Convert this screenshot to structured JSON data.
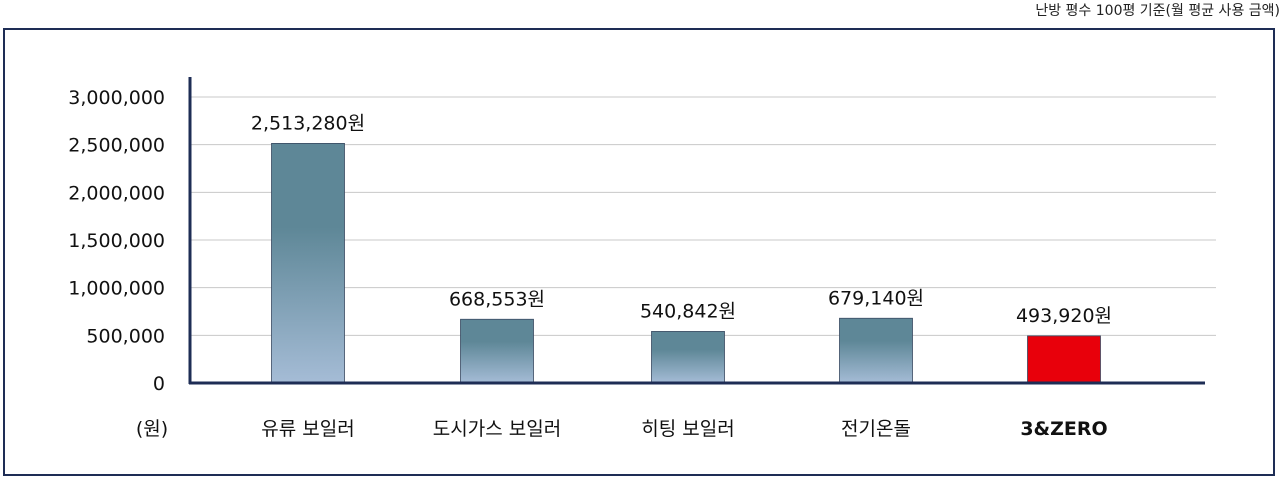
{
  "subtitle": "난방 평수 100평 기준(월 평균 사용 금액)",
  "chart_data": {
    "type": "bar",
    "categories": [
      "유류 보일러",
      "도시가스 보일러",
      "히팅 보일러",
      "전기온돌",
      "3&ZERO"
    ],
    "values": [
      2513280,
      668553,
      540842,
      679140,
      493920
    ],
    "data_labels": [
      "2,513,280원",
      "668,553원",
      "540,842원",
      "679,140원",
      "493,920원"
    ],
    "unit_label": "(원)",
    "y_ticks": [
      "0",
      "500,000",
      "1,000,000",
      "1,500,000",
      "2,000,000",
      "2,500,000",
      "3,000,000"
    ],
    "ylim": [
      0,
      3000000
    ],
    "grid": true,
    "highlight_index": 4,
    "colors": {
      "bar_top": "#5e8797",
      "bar_bottom": "#a5bcd6",
      "highlight": "#e8000b",
      "axis": "#1e2d55",
      "grid": "#c8c8c8",
      "highlight_text": "#e8000b"
    }
  }
}
